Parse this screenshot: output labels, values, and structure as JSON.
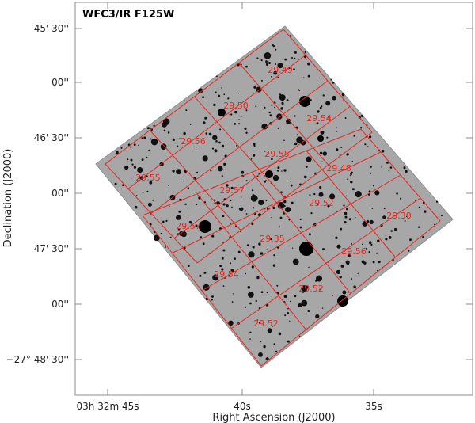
{
  "panel_title": "WFC3/IR F125W",
  "axes": {
    "xlabel": "Right Ascension (J2000)",
    "ylabel": "Declination (J2000)",
    "x_ticks": [
      "03h 32m 45s",
      "40s",
      "35s"
    ],
    "y_ticks": [
      "45' 30''",
      "00''",
      "46' 30''",
      "00''",
      "47' 30''",
      "00''",
      "−27° 48' 30''"
    ]
  },
  "depth_labels": [
    "29.49",
    "29.50",
    "29.54",
    "29.56",
    "29.55",
    "29.48",
    "29.55",
    "29.57",
    "29.52",
    "29.30",
    "29.57",
    "29.35",
    "29.56",
    "29.54",
    "29.52",
    "29.52"
  ],
  "colors": {
    "grid": "#e8281f",
    "frame": "#888888",
    "background": "#a9a9a9"
  }
}
